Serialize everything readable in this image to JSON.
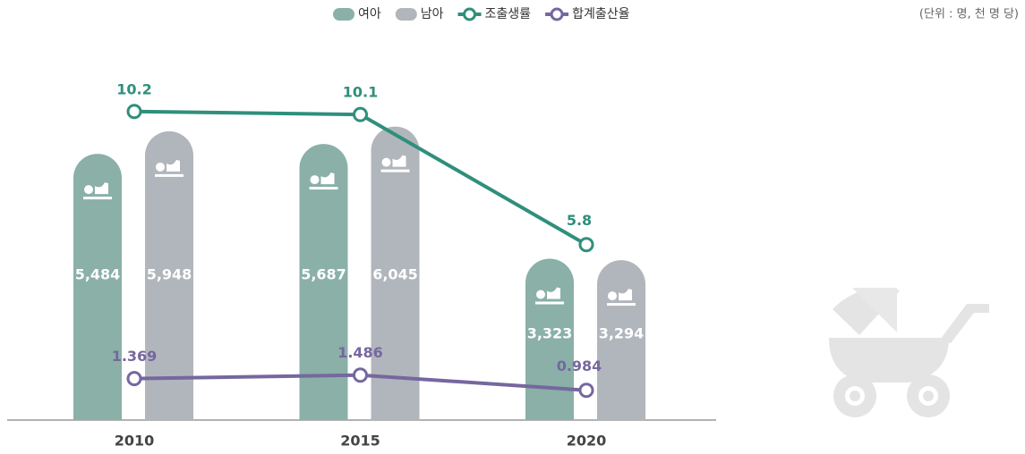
{
  "chart_data": {
    "type": "bar",
    "unit_note": "(단위 : 명, 천 명 당)",
    "categories": [
      "2010",
      "2015",
      "2020"
    ],
    "ylim": [
      0,
      8100
    ],
    "y2lim": [
      0,
      13
    ],
    "series": [
      {
        "name": "여아",
        "type": "bar",
        "color": "#8ab0a8",
        "values": [
          5484,
          5687,
          3323
        ],
        "value_labels": [
          "5,484",
          "5,687",
          "3,323"
        ]
      },
      {
        "name": "남아",
        "type": "bar",
        "color": "#b1b6bc",
        "values": [
          5948,
          6045,
          3294
        ],
        "value_labels": [
          "5,948",
          "6,045",
          "3,294"
        ]
      },
      {
        "name": "조출생률",
        "type": "line",
        "axis": "y2",
        "color": "#2f8f7c",
        "values": [
          10.2,
          10.1,
          5.8
        ]
      },
      {
        "name": "합계출산율",
        "type": "line",
        "axis": "y2",
        "color": "#76679f",
        "values": [
          1.369,
          1.486,
          0.984
        ]
      }
    ]
  }
}
